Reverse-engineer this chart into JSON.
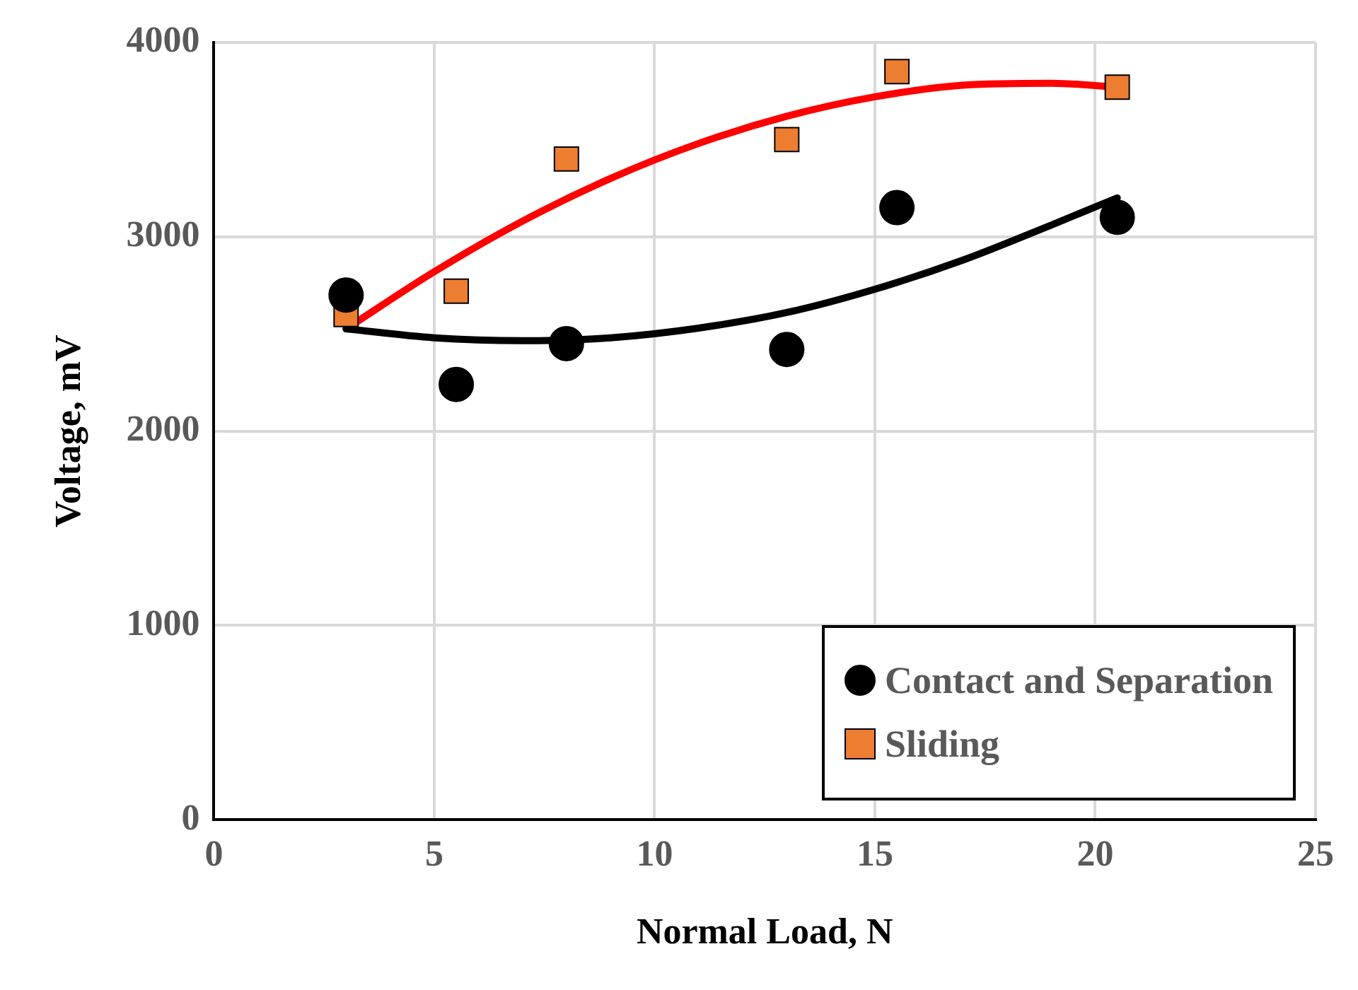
{
  "chart_data": {
    "type": "scatter",
    "xlabel": "Normal Load, N",
    "ylabel": "Voltage, mV",
    "xlim": [
      0,
      25
    ],
    "xticks": [
      0,
      5,
      10,
      15,
      20,
      25
    ],
    "ylim": [
      0,
      4000
    ],
    "yticks": [
      0,
      1000,
      2000,
      3000,
      4000
    ],
    "grid": true,
    "legend": "bottom right",
    "series": [
      {
        "name": "Contact and Separation",
        "color": "#000000",
        "marker": "circle",
        "x": [
          3,
          5.5,
          8,
          13,
          15.5,
          20.5
        ],
        "values": [
          2700,
          2240,
          2450,
          2420,
          3150,
          3100
        ]
      },
      {
        "name": "Sliding",
        "color": "#ed7d31",
        "marker": "square",
        "x": [
          3,
          5.5,
          8,
          13,
          15.5,
          20.5
        ],
        "values": [
          2600,
          2720,
          3400,
          3500,
          3850,
          3770
        ]
      },
      {
        "type": "line",
        "color": "#000000",
        "marker": "none",
        "x": [
          3,
          5,
          7,
          9,
          11,
          13,
          15,
          17,
          19,
          20.5
        ],
        "values": [
          2526,
          2480,
          2465,
          2480,
          2530,
          2610,
          2730,
          2880,
          3060,
          3200
        ]
      },
      {
        "type": "line",
        "color": "#ff0000",
        "marker": "none",
        "x": [
          3,
          5,
          7,
          9,
          11,
          13,
          15,
          17,
          19,
          20.5
        ],
        "values": [
          2526,
          2820,
          3080,
          3300,
          3480,
          3620,
          3720,
          3780,
          3790,
          3770
        ]
      }
    ]
  }
}
